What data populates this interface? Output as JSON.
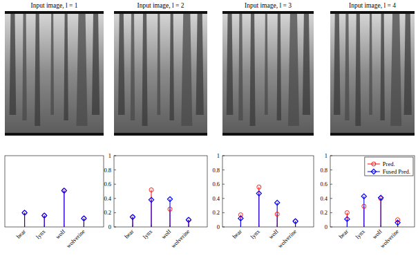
{
  "chart_data": [
    {
      "type": "stem",
      "title": "Input image, l = 1",
      "categories": [
        "bear",
        "lynx",
        "wolf",
        "wolverine"
      ],
      "series": [
        {
          "name": "Pred.",
          "color": "#ff0000",
          "marker": "circle",
          "values": [
            0.2,
            0.16,
            0.51,
            0.12
          ]
        },
        {
          "name": "Fused Pred.",
          "color": "#0000ff",
          "marker": "diamond",
          "values": [
            0.2,
            0.16,
            0.51,
            0.12
          ]
        }
      ],
      "ylim": [
        0,
        1
      ],
      "tick_labels": "x"
    },
    {
      "type": "stem",
      "title": "Input image, l = 2",
      "categories": [
        "bear",
        "lynx",
        "wolf",
        "wolverine"
      ],
      "series": [
        {
          "name": "Pred.",
          "color": "#ff0000",
          "marker": "circle",
          "values": [
            0.14,
            0.52,
            0.25,
            0.1
          ]
        },
        {
          "name": "Fused Pred.",
          "color": "#0000ff",
          "marker": "diamond",
          "values": [
            0.14,
            0.38,
            0.39,
            0.1
          ]
        }
      ],
      "ylim": [
        0,
        1
      ],
      "yticks": [
        0,
        0.2,
        0.4,
        0.6,
        0.8,
        1
      ]
    },
    {
      "type": "stem",
      "title": "Input image, l = 3",
      "categories": [
        "bear",
        "lynx",
        "wolf",
        "wolverine"
      ],
      "series": [
        {
          "name": "Pred.",
          "color": "#ff0000",
          "marker": "circle",
          "values": [
            0.17,
            0.56,
            0.18,
            0.08
          ]
        },
        {
          "name": "Fused Pred.",
          "color": "#0000ff",
          "marker": "diamond",
          "values": [
            0.12,
            0.47,
            0.34,
            0.08
          ]
        }
      ],
      "ylim": [
        0,
        1
      ],
      "yticks": [
        0,
        0.2,
        0.4,
        0.6,
        0.8,
        1
      ]
    },
    {
      "type": "stem",
      "title": "Input image, l = 4",
      "categories": [
        "bear",
        "lynx",
        "wolf",
        "wolverine"
      ],
      "series": [
        {
          "name": "Pred.",
          "color": "#ff0000",
          "marker": "circle",
          "values": [
            0.2,
            0.29,
            0.4,
            0.1
          ]
        },
        {
          "name": "Fused Pred.",
          "color": "#0000ff",
          "marker": "diamond",
          "values": [
            0.11,
            0.43,
            0.41,
            0.06
          ]
        }
      ],
      "ylim": [
        0,
        1
      ],
      "yticks": [
        0,
        0.2,
        0.4,
        0.6,
        0.8,
        1
      ],
      "legend": "upper right"
    }
  ]
}
